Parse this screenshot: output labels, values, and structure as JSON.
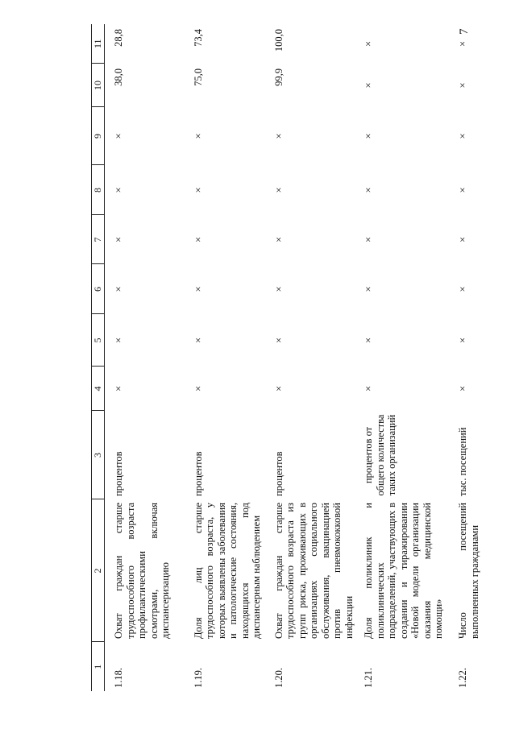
{
  "page_number": "7",
  "headers": [
    "1",
    "2",
    "3",
    "4",
    "5",
    "6",
    "7",
    "8",
    "9",
    "10",
    "11"
  ],
  "rows": [
    {
      "num": "1.18.",
      "name": "Охват граждан старше трудоспособного возраста профилактическими осмотрами, включая диспансеризацию",
      "unit": "процентов",
      "c4": "×",
      "c5": "×",
      "c6": "×",
      "c7": "×",
      "c8": "×",
      "c9": "×",
      "c10": "38,0",
      "c11": "28,8"
    },
    {
      "num": "1.19.",
      "name": "Доля лиц старше трудоспособного возраста, у которых выявлены заболевания и патологические состояния, находящихся под диспансерным наблюдением",
      "unit": "процентов",
      "c4": "×",
      "c5": "×",
      "c6": "×",
      "c7": "×",
      "c8": "×",
      "c9": "×",
      "c10": "75,0",
      "c11": "73,4"
    },
    {
      "num": "1.20.",
      "name": "Охват граждан старше трудоспособного возраста из групп риска, проживающих в организациях социального обслуживания, вакцинацией против пневмококковой инфекции",
      "unit": "процентов",
      "c4": "×",
      "c5": "×",
      "c6": "×",
      "c7": "×",
      "c8": "×",
      "c9": "×",
      "c10": "99,9",
      "c11": "100,0"
    },
    {
      "num": "1.21.",
      "name": "Доля поликлиник и поликлинических подразделений, участвующих в создании и тиражировании «Новой модели организации оказания медицинской помощи»",
      "unit": "процентов от общего количества таких организаций",
      "c4": "×",
      "c5": "×",
      "c6": "×",
      "c7": "×",
      "c8": "×",
      "c9": "×",
      "c10": "×",
      "c11": "×"
    },
    {
      "num": "1.22.",
      "name": "Число посещений выполненных гражданами",
      "unit": "тыс. посещений",
      "c4": "×",
      "c5": "×",
      "c6": "×",
      "c7": "×",
      "c8": "×",
      "c9": "×",
      "c10": "×",
      "c11": "×"
    }
  ]
}
